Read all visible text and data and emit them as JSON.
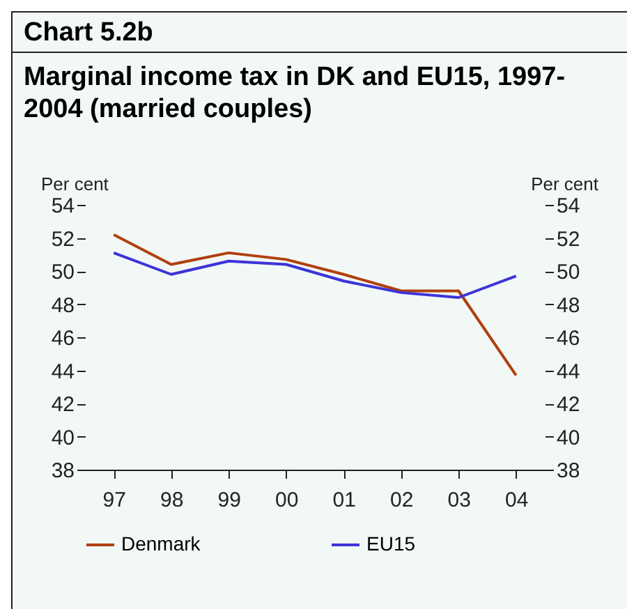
{
  "chart_data": {
    "type": "line",
    "title": "Marginal income tax in DK and EU15, 1997-2004 (married couples)",
    "annotations": [
      "Chart 5.2b"
    ],
    "ylabel": "Per cent",
    "y2label": "Per cent",
    "categories": [
      "97",
      "98",
      "99",
      "00",
      "01",
      "02",
      "03",
      "04"
    ],
    "series": [
      {
        "name": "Denmark",
        "color": "#b0400e",
        "values": [
          52.2,
          50.4,
          51.1,
          50.7,
          49.8,
          48.8,
          48.8,
          43.7
        ]
      },
      {
        "name": "EU15",
        "color": "#3c34d8",
        "values": [
          51.1,
          49.8,
          50.6,
          50.4,
          49.4,
          48.7,
          48.4,
          49.7
        ]
      }
    ],
    "ylim": [
      38,
      54
    ],
    "yticks": [
      38,
      40,
      42,
      44,
      46,
      48,
      50,
      52,
      54
    ],
    "y2lim": [
      38,
      54
    ],
    "y2ticks": [
      38,
      40,
      42,
      44,
      46,
      48,
      50,
      52,
      54
    ],
    "grid": false,
    "legend": "bottom",
    "marker": "none",
    "line_style": "solid"
  }
}
